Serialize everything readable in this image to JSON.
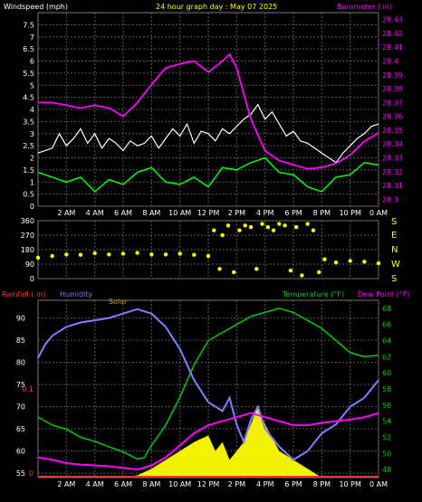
{
  "top_panel": {
    "left_title": "Windspeed (mph)",
    "center_title": "24 hour graph day : May 07 2025",
    "right_title": "Barometer (.in)"
  },
  "mid_panel": {
    "directions": [
      "S",
      "E",
      "N",
      "W",
      "S"
    ]
  },
  "bottom_panel": {
    "rainfall_label": "Rainfall (.in)",
    "humidity_label": "Humidity",
    "solar_label": "Solar",
    "temperature_label": "Temperature (°F)",
    "dewpoint_label": "Dew Point (°F)"
  },
  "colors": {
    "background": "#000000",
    "plot_bg": "#000000",
    "grid": "#5a5a5a",
    "wind_speed": "#ffffff",
    "wind_gust_area": "#00ff00",
    "barometer": "#ff00ff",
    "direction": "#ffff00",
    "temperature": "#00cc00",
    "dewpoint": "#ff00ff",
    "humidity": "#8080ff",
    "solar": "#ffff00",
    "rain": "#ff3333"
  },
  "chart_data": [
    {
      "type": "line",
      "name": "wind-barometer",
      "x_ticks": [
        "2 AM",
        "4 AM",
        "6 AM",
        "8 AM",
        "10 AM",
        "12 PM",
        "2 PM",
        "4 PM",
        "6 PM",
        "8 PM",
        "10 PM",
        "0 AM"
      ],
      "y_left_ticks": [
        "0",
        "0.5",
        "1",
        "1.5",
        "2",
        "2.5",
        "3",
        "3.5",
        "4",
        "4.5",
        "5",
        "5.5",
        "6",
        "6.5",
        "7",
        "7.5"
      ],
      "y_right_ticks": [
        "28.3",
        "28.31",
        "28.32",
        "28.33",
        "28.34",
        "28.35",
        "28.36",
        "28.37",
        "28.38",
        "28.39",
        "28.4",
        "28.41",
        "28.42",
        "28.43"
      ],
      "ylim_left": [
        0,
        8
      ],
      "ylim_right": [
        28.295,
        28.435
      ],
      "xlim_hours": [
        0,
        24
      ],
      "series": [
        {
          "name": "Windspeed (mph)",
          "axis": "left",
          "x": [
            0,
            1,
            1.5,
            2,
            2.5,
            3,
            3.5,
            4,
            4.5,
            5,
            5.5,
            6,
            6.5,
            7,
            7.5,
            8,
            8.5,
            9,
            9.5,
            10,
            10.5,
            11,
            11.5,
            12,
            12.5,
            13,
            13.5,
            14,
            14.5,
            15,
            15.5,
            16,
            16.5,
            17,
            17.5,
            18,
            18.5,
            19,
            19.5,
            20,
            20.5,
            21,
            21.5,
            22,
            22.5,
            23,
            23.5,
            24
          ],
          "values": [
            2.2,
            2.4,
            3.0,
            2.5,
            2.8,
            3.2,
            2.6,
            3.0,
            2.4,
            2.8,
            2.6,
            2.3,
            2.7,
            2.5,
            2.6,
            2.9,
            2.4,
            2.8,
            3.2,
            2.9,
            3.4,
            2.6,
            3.1,
            3.0,
            2.7,
            3.2,
            3.0,
            3.3,
            3.6,
            3.8,
            4.2,
            3.6,
            3.9,
            3.4,
            2.9,
            3.1,
            2.7,
            2.6,
            2.4,
            2.2,
            2.0,
            1.8,
            2.2,
            2.5,
            2.8,
            3.0,
            3.3,
            3.4
          ]
        },
        {
          "name": "Wind lull (mph)",
          "axis": "left",
          "x": [
            0,
            1,
            2,
            3,
            4,
            5,
            6,
            7,
            8,
            9,
            10,
            11,
            12,
            13,
            14,
            15,
            16,
            17,
            18,
            19,
            20,
            21,
            22,
            23,
            24
          ],
          "values": [
            1.4,
            1.2,
            1.0,
            1.2,
            0.6,
            1.1,
            0.9,
            1.4,
            1.6,
            1.0,
            0.9,
            1.2,
            0.8,
            1.6,
            1.5,
            1.8,
            2.0,
            1.4,
            1.3,
            0.8,
            0.6,
            1.2,
            1.3,
            1.8,
            1.7
          ]
        },
        {
          "name": "Barometer (.in)",
          "axis": "right",
          "x": [
            0,
            1,
            2,
            3,
            4,
            5,
            6,
            7,
            8,
            9,
            10,
            11,
            12,
            13,
            13.5,
            14,
            15,
            16,
            17,
            18,
            19,
            20,
            21,
            22,
            23,
            24
          ],
          "values": [
            28.37,
            28.37,
            28.368,
            28.366,
            28.368,
            28.366,
            28.36,
            28.37,
            28.383,
            28.395,
            28.398,
            28.4,
            28.392,
            28.4,
            28.405,
            28.395,
            28.358,
            28.335,
            28.328,
            28.325,
            28.322,
            28.323,
            28.326,
            28.332,
            28.342,
            28.348
          ]
        }
      ]
    },
    {
      "type": "scatter",
      "name": "wind-direction",
      "x_ticks": [
        "2 AM",
        "4 AM",
        "6 AM",
        "8 AM",
        "10 AM",
        "12 PM",
        "2 PM",
        "4 PM",
        "6 PM",
        "8 PM",
        "10 PM",
        "0 AM"
      ],
      "y_ticks": [
        "0",
        "90",
        "180",
        "270",
        "360"
      ],
      "ylim": [
        0,
        360
      ],
      "xlim_hours": [
        0,
        24
      ],
      "series": [
        {
          "name": "Wind direction",
          "x": [
            0,
            1,
            2,
            3,
            4,
            5,
            6,
            7,
            8,
            9,
            10,
            11,
            12,
            12.4,
            12.8,
            13,
            13.4,
            13.8,
            14.2,
            14.6,
            15,
            15.4,
            15.8,
            16.2,
            16.6,
            17,
            17.4,
            17.8,
            18.2,
            18.6,
            19,
            19.4,
            19.8,
            20.2,
            21,
            22,
            23,
            24
          ],
          "values": [
            130,
            140,
            150,
            148,
            158,
            150,
            155,
            160,
            150,
            150,
            155,
            148,
            140,
            300,
            60,
            270,
            330,
            40,
            300,
            330,
            320,
            60,
            340,
            320,
            300,
            340,
            330,
            50,
            320,
            20,
            340,
            300,
            40,
            120,
            100,
            110,
            105,
            95
          ]
        }
      ]
    },
    {
      "type": "line",
      "name": "temperature-humidity",
      "x_ticks": [
        "2 AM",
        "4 AM",
        "6 AM",
        "8 AM",
        "10 AM",
        "12 PM",
        "2 PM",
        "4 PM",
        "6 PM",
        "8 PM",
        "10 PM",
        "0 AM"
      ],
      "y_left_ticks": [
        "55",
        "60",
        "65",
        "70",
        "75",
        "80",
        "85",
        "90"
      ],
      "y_right_ticks": [
        "48",
        "50",
        "52",
        "54",
        "56",
        "58",
        "60",
        "62",
        "64",
        "66",
        "68"
      ],
      "rain_ticks": [
        "0",
        "0.1"
      ],
      "ylim_left": [
        54,
        94
      ],
      "ylim_right": [
        47,
        69
      ],
      "xlim_hours": [
        0,
        24
      ],
      "series": [
        {
          "name": "Temperature (°F)",
          "axis": "right",
          "x": [
            0,
            1,
            2,
            3,
            4,
            5,
            6,
            7,
            7.5,
            8,
            9,
            10,
            11,
            12,
            13,
            14,
            15,
            16,
            17,
            18,
            19,
            20,
            21,
            22,
            23,
            24
          ],
          "values": [
            54.5,
            53.5,
            53,
            52,
            51.5,
            50.8,
            50.2,
            49.3,
            49.5,
            51,
            53.5,
            57,
            61,
            64,
            65,
            66,
            67,
            67.5,
            68,
            67.5,
            66.5,
            65.5,
            64,
            62.5,
            62,
            62.2
          ]
        },
        {
          "name": "Humidity",
          "axis": "left",
          "x": [
            0,
            0.5,
            1,
            2,
            3,
            4,
            5,
            6,
            7,
            8,
            9,
            10,
            11,
            12,
            13,
            13.5,
            14,
            14.5,
            15,
            15.5,
            16,
            17,
            18,
            19,
            20,
            21,
            22,
            23,
            24
          ],
          "values": [
            81,
            84,
            86,
            88,
            89,
            89.5,
            90,
            91,
            92,
            91,
            88,
            83,
            76,
            71,
            69,
            72,
            66,
            62,
            67,
            70,
            65,
            61,
            58,
            60,
            64,
            66,
            70,
            72,
            76
          ]
        },
        {
          "name": "Dew Point (°F)",
          "axis": "right",
          "x": [
            0,
            1,
            2,
            3,
            4,
            5,
            6,
            7,
            8,
            9,
            10,
            11,
            12,
            13,
            14,
            15,
            16,
            17,
            18,
            19,
            20,
            21,
            22,
            23,
            24
          ],
          "values": [
            49.5,
            49.2,
            48.8,
            48.6,
            48.5,
            48.4,
            48.2,
            48,
            48.5,
            49.5,
            51,
            52.5,
            53.5,
            54,
            54.5,
            55,
            54.5,
            54,
            53.5,
            53.5,
            53.8,
            54,
            54.2,
            54.5,
            55
          ]
        },
        {
          "name": "Solar",
          "axis": "left",
          "x": [
            6,
            7,
            8,
            9,
            10,
            11,
            12,
            12.5,
            13,
            13.5,
            14,
            14.5,
            15,
            15.5,
            16,
            16.5,
            17,
            17.5,
            18,
            19,
            20
          ],
          "values": [
            54,
            54.5,
            56,
            58,
            60,
            62,
            63.5,
            60,
            62,
            58,
            60,
            62,
            66,
            70,
            66,
            63,
            60,
            59,
            58,
            56,
            54
          ]
        }
      ]
    }
  ]
}
